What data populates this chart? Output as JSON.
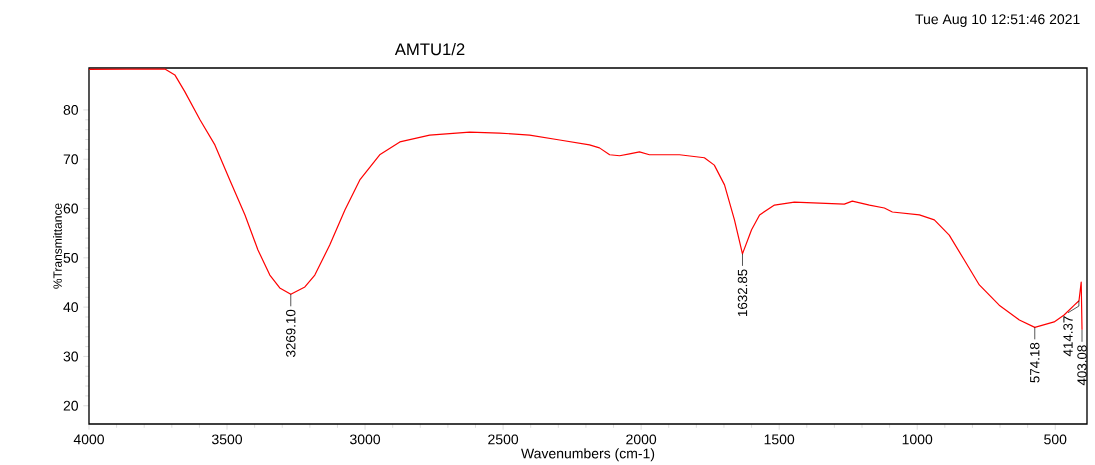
{
  "chart_data": {
    "type": "line",
    "title": "AMTU1/2",
    "xlabel": "Wavenumbers (cm-1)",
    "ylabel": "%Transmittance",
    "xlim": [
      4000,
      385
    ],
    "ylim": [
      16.3,
      88.5
    ],
    "xticks": [
      4000,
      3500,
      3000,
      2500,
      2000,
      1500,
      1000,
      500
    ],
    "yticks": [
      20,
      30,
      40,
      50,
      60,
      70,
      80
    ],
    "grid": false,
    "marker": "none",
    "line_style": "solid",
    "annotations": [
      "Tue Aug 10 12:51:46 2021",
      {
        "text": "3269.10",
        "x": 3269.1,
        "y": 42.6
      },
      {
        "text": "1632.85",
        "x": 1632.85,
        "y": 50.8
      },
      {
        "text": "574.18",
        "x": 574.18,
        "y": 35.9
      },
      {
        "text": "414.37",
        "x": 414.37,
        "y": 41.3
      },
      {
        "text": "403.08",
        "x": 403.08,
        "y": 35.4
      }
    ],
    "series": [
      {
        "color": "#ff0000",
        "x": [
          4000,
          3725,
          3689,
          3653,
          3598,
          3544,
          3490,
          3435,
          3388,
          3345,
          3309,
          3269,
          3218,
          3182,
          3128,
          3073,
          3019,
          2947,
          2874,
          2766,
          2621,
          2513,
          2404,
          2295,
          2187,
          2151,
          2114,
          2078,
          2042,
          2006,
          1970,
          1861,
          1771,
          1735,
          1698,
          1662,
          1633,
          1600,
          1571,
          1517,
          1445,
          1354,
          1264,
          1235,
          1173,
          1119,
          1090,
          992,
          938,
          884,
          830,
          775,
          703,
          630,
          574,
          504,
          468,
          431,
          414,
          406,
          403
        ],
        "values": [
          88.2,
          88.3,
          87.1,
          83.7,
          78.0,
          72.9,
          65.8,
          58.7,
          51.6,
          46.5,
          43.9,
          42.6,
          44.1,
          46.5,
          52.6,
          59.7,
          65.8,
          70.9,
          73.5,
          74.9,
          75.5,
          75.3,
          74.9,
          73.9,
          72.9,
          72.3,
          70.9,
          70.7,
          71.1,
          71.5,
          70.9,
          70.9,
          70.3,
          68.8,
          64.8,
          57.7,
          50.8,
          55.7,
          58.7,
          60.7,
          61.3,
          61.1,
          60.9,
          61.5,
          60.7,
          60.1,
          59.3,
          58.7,
          57.7,
          54.6,
          49.6,
          44.5,
          40.4,
          37.4,
          35.9,
          37.0,
          38.4,
          40.4,
          41.3,
          45.1,
          35.4
        ]
      }
    ]
  }
}
